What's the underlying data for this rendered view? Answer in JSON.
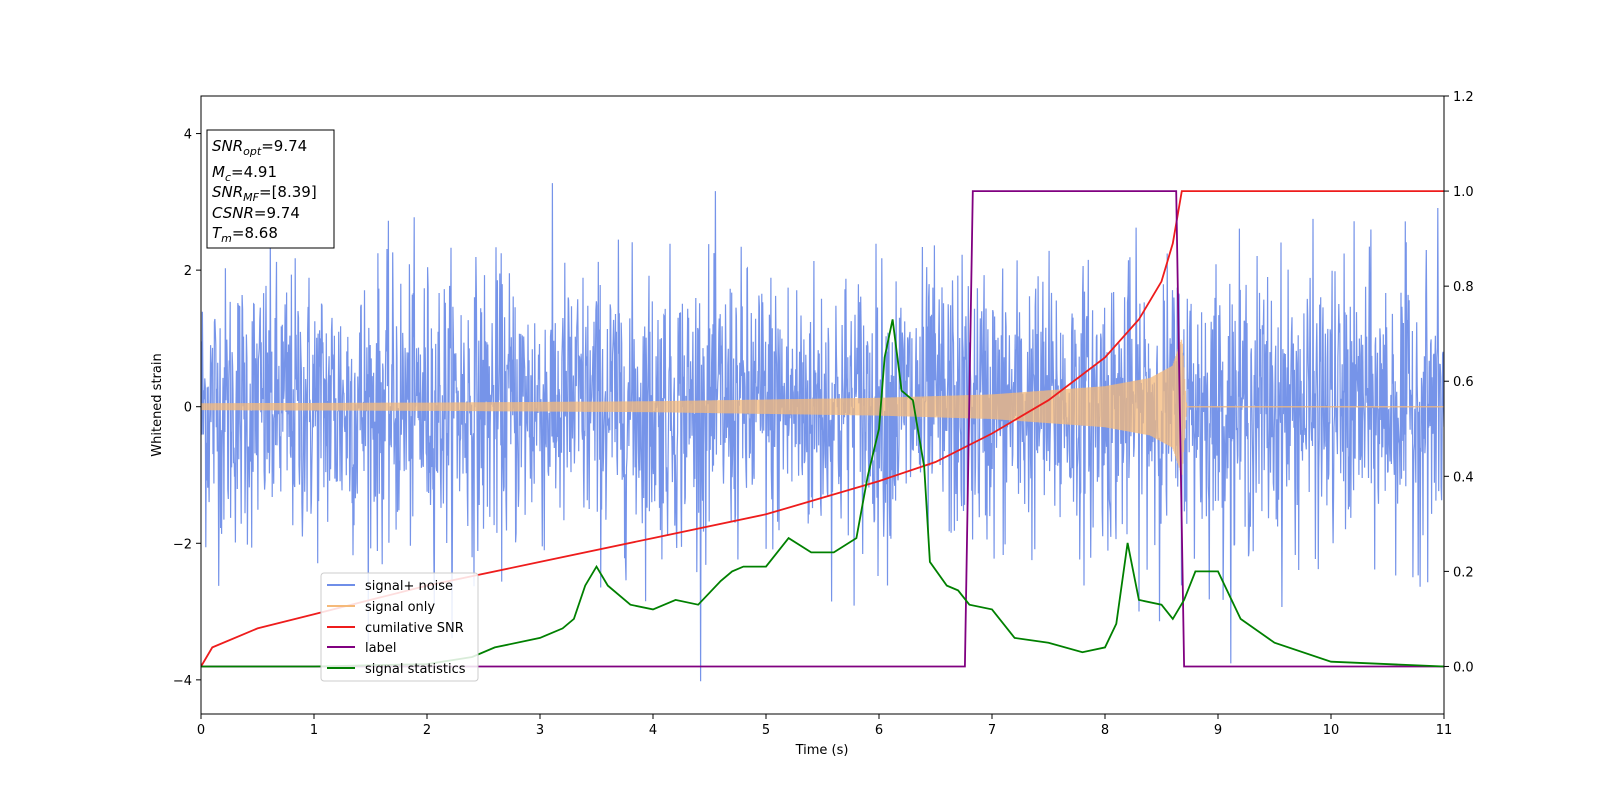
{
  "chart_data": {
    "type": "line",
    "xlabel": "Time (s)",
    "ylabel_left": "Whitened strain",
    "ylabel_right": "",
    "xlim": [
      0,
      11
    ],
    "ylim_left": [
      -4.5,
      4.55
    ],
    "ylim_right": [
      -0.1,
      1.2
    ],
    "x_ticks": [
      0,
      1,
      2,
      3,
      4,
      5,
      6,
      7,
      8,
      9,
      10,
      11
    ],
    "y_ticks_left": [
      -4,
      -2,
      0,
      2,
      4
    ],
    "y_ticks_right": [
      0.0,
      0.2,
      0.4,
      0.6,
      0.8,
      1.0,
      1.2
    ],
    "grid": false,
    "legend_position": "lower-left",
    "info_box": {
      "snr_opt": {
        "sym": "SNR",
        "sub": "opt",
        "val": "=9.74"
      },
      "mc": {
        "sym": "M",
        "sub": "c",
        "val": "=4.91"
      },
      "snr_mf": {
        "sym": "SNR",
        "sub": "MF",
        "val": "=[8.39]"
      },
      "csnr": {
        "sym": "CSNR",
        "sub": "",
        "val": "=9.74"
      },
      "tm": {
        "sym": "T",
        "sub": "m",
        "val": "=8.68"
      }
    },
    "series": [
      {
        "name": "signal+ noise",
        "color": "#6f8ee8",
        "axis": "left",
        "note": "white Gaussian noise, std ~1.0, peaks to ~4.2, over 0-11 s",
        "std": 1.0
      },
      {
        "name": "signal only",
        "color": "#f5b979",
        "axis": "left",
        "note": "chirp with amplitude growing from ~0.05 to ~1.0 at merger",
        "amplitude_points": [
          [
            0,
            0.05
          ],
          [
            2,
            0.06
          ],
          [
            4,
            0.08
          ],
          [
            6,
            0.13
          ],
          [
            7,
            0.18
          ],
          [
            8,
            0.3
          ],
          [
            8.4,
            0.42
          ],
          [
            8.6,
            0.6
          ],
          [
            8.68,
            1.0
          ],
          [
            8.72,
            0.0
          ],
          [
            11,
            0.0
          ]
        ]
      },
      {
        "name": "cumilative SNR",
        "color": "#ee1c1c",
        "axis": "right",
        "points": [
          [
            0,
            0.0
          ],
          [
            0.1,
            0.04
          ],
          [
            0.5,
            0.08
          ],
          [
            1,
            0.11
          ],
          [
            2,
            0.17
          ],
          [
            3,
            0.22
          ],
          [
            4,
            0.27
          ],
          [
            5,
            0.32
          ],
          [
            6,
            0.39
          ],
          [
            6.5,
            0.43
          ],
          [
            7,
            0.49
          ],
          [
            7.5,
            0.56
          ],
          [
            8,
            0.65
          ],
          [
            8.3,
            0.73
          ],
          [
            8.5,
            0.81
          ],
          [
            8.6,
            0.89
          ],
          [
            8.68,
            1.0
          ],
          [
            11,
            1.0
          ]
        ]
      },
      {
        "name": "label",
        "color": "#800080",
        "axis": "right",
        "points": [
          [
            0,
            0.0
          ],
          [
            6.76,
            0.0
          ],
          [
            6.83,
            1.0
          ],
          [
            8.63,
            1.0
          ],
          [
            8.7,
            0.0
          ],
          [
            11,
            0.0
          ]
        ]
      },
      {
        "name": "signal statistics",
        "color": "#008000",
        "axis": "right",
        "points": [
          [
            0,
            0.0
          ],
          [
            1,
            0.0
          ],
          [
            2,
            0.005
          ],
          [
            2.4,
            0.02
          ],
          [
            2.6,
            0.04
          ],
          [
            3.0,
            0.06
          ],
          [
            3.2,
            0.08
          ],
          [
            3.3,
            0.1
          ],
          [
            3.4,
            0.17
          ],
          [
            3.5,
            0.21
          ],
          [
            3.6,
            0.17
          ],
          [
            3.8,
            0.13
          ],
          [
            4.0,
            0.12
          ],
          [
            4.2,
            0.14
          ],
          [
            4.4,
            0.13
          ],
          [
            4.6,
            0.18
          ],
          [
            4.7,
            0.2
          ],
          [
            4.8,
            0.21
          ],
          [
            5.0,
            0.21
          ],
          [
            5.2,
            0.27
          ],
          [
            5.4,
            0.24
          ],
          [
            5.6,
            0.24
          ],
          [
            5.8,
            0.27
          ],
          [
            5.9,
            0.4
          ],
          [
            6.0,
            0.5
          ],
          [
            6.05,
            0.65
          ],
          [
            6.12,
            0.73
          ],
          [
            6.2,
            0.58
          ],
          [
            6.3,
            0.56
          ],
          [
            6.4,
            0.42
          ],
          [
            6.45,
            0.22
          ],
          [
            6.6,
            0.17
          ],
          [
            6.7,
            0.16
          ],
          [
            6.8,
            0.13
          ],
          [
            7.0,
            0.12
          ],
          [
            7.2,
            0.06
          ],
          [
            7.5,
            0.05
          ],
          [
            7.8,
            0.03
          ],
          [
            8.0,
            0.04
          ],
          [
            8.1,
            0.09
          ],
          [
            8.2,
            0.26
          ],
          [
            8.3,
            0.14
          ],
          [
            8.5,
            0.13
          ],
          [
            8.6,
            0.1
          ],
          [
            8.7,
            0.14
          ],
          [
            8.8,
            0.2
          ],
          [
            9.0,
            0.2
          ],
          [
            9.2,
            0.1
          ],
          [
            9.5,
            0.05
          ],
          [
            10.0,
            0.01
          ],
          [
            11,
            0.0
          ]
        ]
      }
    ]
  }
}
